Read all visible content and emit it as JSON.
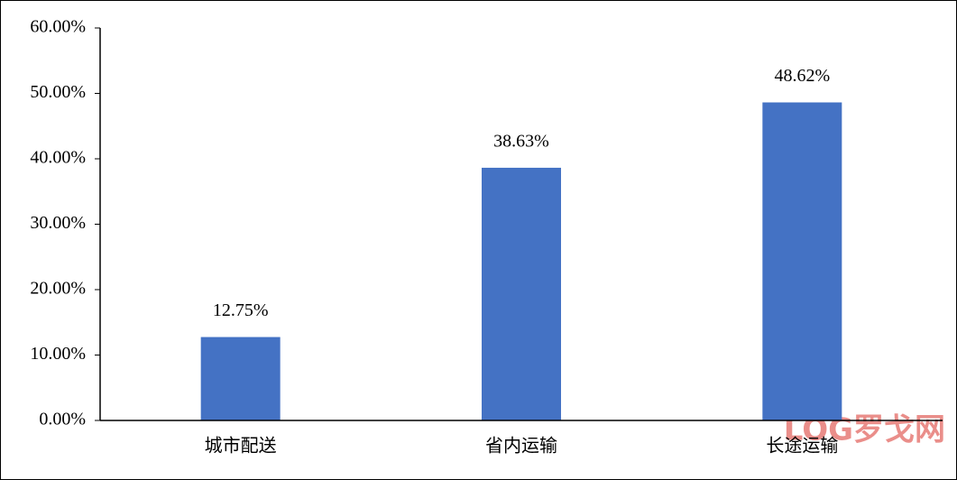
{
  "chart_data": {
    "type": "bar",
    "categories": [
      "城市配送",
      "省内运输",
      "长途运输"
    ],
    "values": [
      12.75,
      38.63,
      48.62
    ],
    "value_labels": [
      "12.75%",
      "38.63%",
      "48.62%"
    ],
    "color": "#4472c4",
    "ylim": [
      0,
      60
    ],
    "yticks": [
      {
        "value": 0,
        "label": "0.00%"
      },
      {
        "value": 10,
        "label": "10.00%"
      },
      {
        "value": 20,
        "label": "20.00%"
      },
      {
        "value": 30,
        "label": "30.00%"
      },
      {
        "value": 40,
        "label": "40.00%"
      },
      {
        "value": 50,
        "label": "50.00%"
      },
      {
        "value": 60,
        "label": "60.00%"
      }
    ],
    "grid": false,
    "watermark": "LOG罗戈网"
  }
}
